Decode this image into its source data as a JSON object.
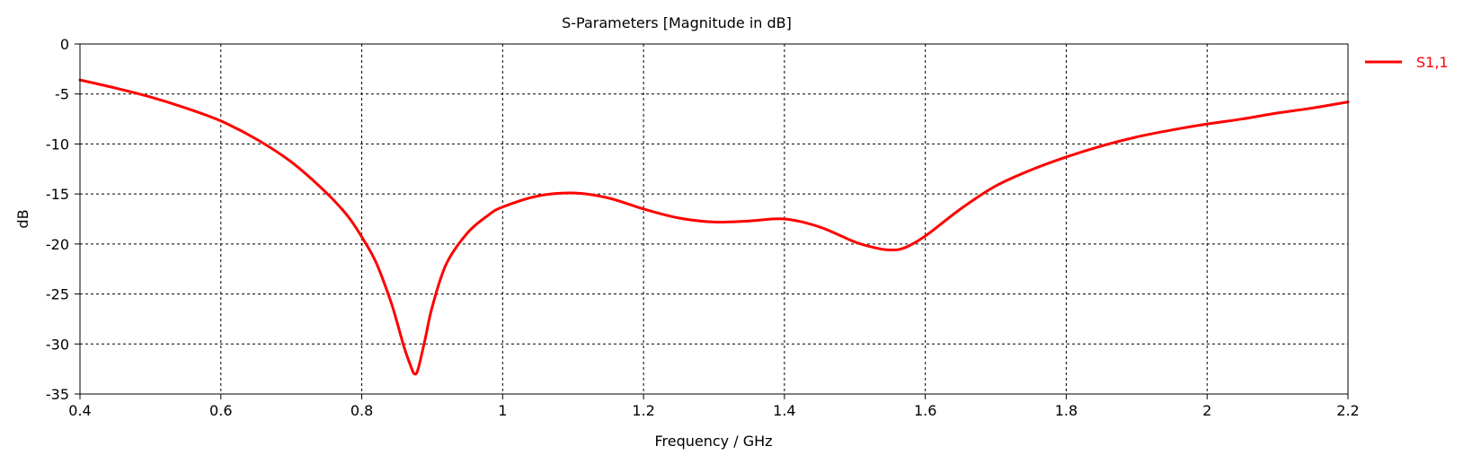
{
  "chart_data": {
    "type": "line",
    "title": "S-Parameters [Magnitude in dB]",
    "xlabel": "Frequency / GHz",
    "ylabel": "dB",
    "xlim": [
      0.4,
      2.2
    ],
    "ylim": [
      -35,
      0
    ],
    "x_ticks": [
      0.4,
      0.6,
      0.8,
      1,
      1.2,
      1.4,
      1.6,
      1.8,
      2,
      2.2
    ],
    "y_ticks": [
      0,
      -5,
      -10,
      -15,
      -20,
      -25,
      -30,
      -35
    ],
    "grid": true,
    "legend_position": "top-right, outside plot",
    "series": [
      {
        "name": "S1,1",
        "color": "#ff0000",
        "x": [
          0.4,
          0.45,
          0.5,
          0.55,
          0.6,
          0.65,
          0.7,
          0.75,
          0.78,
          0.8,
          0.82,
          0.84,
          0.85,
          0.86,
          0.87,
          0.875,
          0.88,
          0.89,
          0.9,
          0.92,
          0.95,
          0.98,
          1.0,
          1.05,
          1.1,
          1.15,
          1.2,
          1.25,
          1.3,
          1.35,
          1.4,
          1.45,
          1.5,
          1.53,
          1.55,
          1.57,
          1.6,
          1.65,
          1.7,
          1.75,
          1.8,
          1.85,
          1.9,
          1.95,
          2.0,
          2.05,
          2.1,
          2.15,
          2.2
        ],
        "y": [
          -3.6,
          -4.4,
          -5.3,
          -6.4,
          -7.7,
          -9.5,
          -11.8,
          -14.9,
          -17.2,
          -19.3,
          -21.8,
          -25.5,
          -27.8,
          -30.3,
          -32.3,
          -33.0,
          -32.5,
          -29.5,
          -26.3,
          -22.0,
          -18.9,
          -17.1,
          -16.3,
          -15.2,
          -14.9,
          -15.4,
          -16.5,
          -17.4,
          -17.8,
          -17.7,
          -17.5,
          -18.3,
          -19.8,
          -20.4,
          -20.6,
          -20.4,
          -19.2,
          -16.5,
          -14.2,
          -12.6,
          -11.3,
          -10.2,
          -9.3,
          -8.6,
          -8.0,
          -7.5,
          -6.9,
          -6.4,
          -5.8
        ]
      }
    ]
  }
}
